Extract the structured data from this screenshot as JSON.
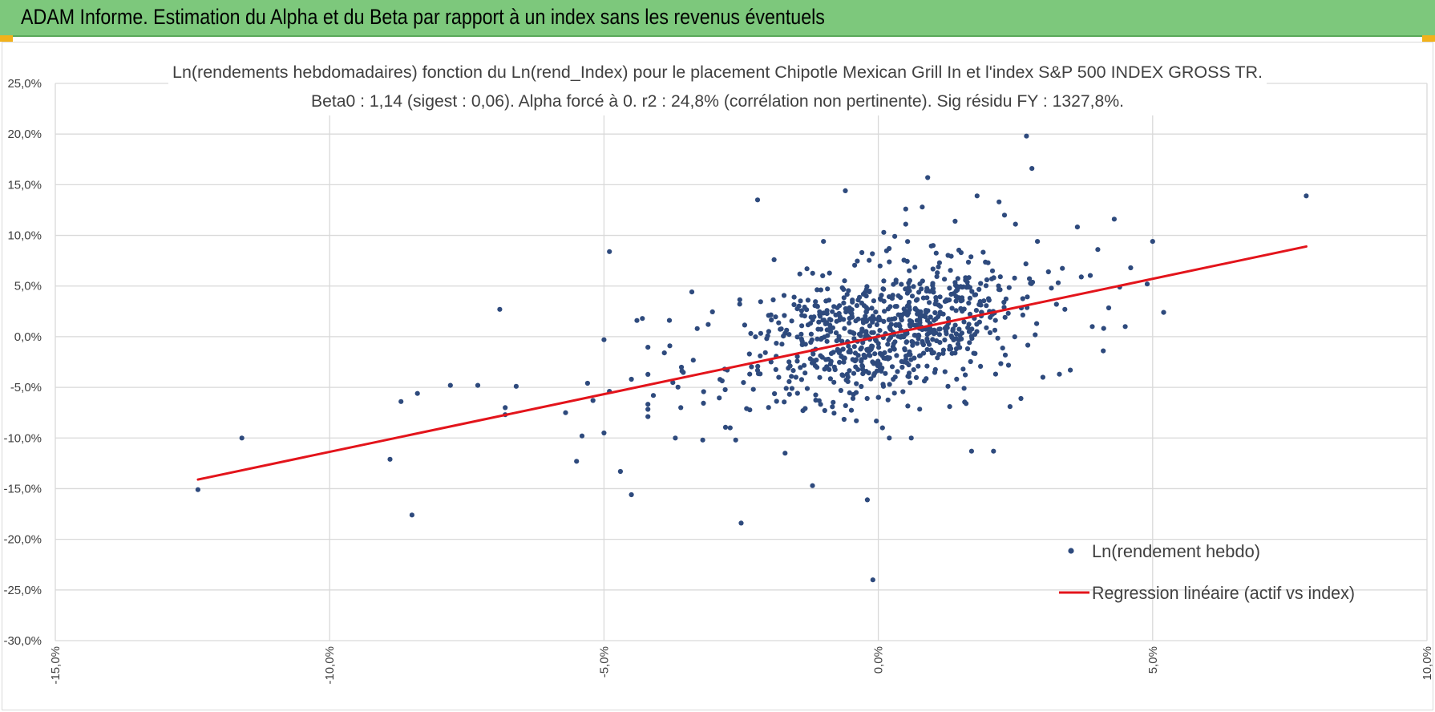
{
  "header": {
    "title": "ADAM Informe. Estimation du Alpha et du Beta par rapport à un index sans les revenus éventuels"
  },
  "colors": {
    "header_bg": "#7dc87c",
    "accent_corner": "#f2b21a",
    "points": "#2e4a7d",
    "regression": "#e3141b",
    "grid": "#d9d9d9",
    "text": "#404040"
  },
  "chart_data": {
    "type": "scatter",
    "title_lines": [
      "Ln(rendements hebdomadaires) fonction du Ln(rend_Index) pour le placement Chipotle Mexican Grill In et l'index S&P 500 INDEX GROSS TR.",
      "Beta0 : 1,14 (sigest : 0,06).  Alpha forcé à 0. r2 : 24,8% (corrélation non pertinente). Sig résidu FY : 1327,8%."
    ],
    "xlim": [
      -15,
      10
    ],
    "ylim": [
      -30,
      25
    ],
    "x_ticks": [
      "-15,0%",
      "-10,0%",
      "-5,0%",
      "0,0%",
      "5,0%",
      "10,0%"
    ],
    "y_ticks": [
      "25,0%",
      "20,0%",
      "15,0%",
      "10,0%",
      "5,0%",
      "0,0%",
      "-5,0%",
      "-10,0%",
      "-15,0%",
      "-20,0%",
      "-25,0%",
      "-30,0%"
    ],
    "grid": true,
    "legend_position": "bottom-right",
    "series": [
      {
        "name": "Ln(rendement hebdo)",
        "kind": "scatter",
        "approximate_count": 900,
        "points": [
          [
            -12.4,
            -15.1
          ],
          [
            -11.6,
            -10.0
          ],
          [
            -8.9,
            -12.1
          ],
          [
            -8.7,
            -6.4
          ],
          [
            -8.5,
            -17.6
          ],
          [
            -8.4,
            -5.6
          ],
          [
            -7.8,
            -4.8
          ],
          [
            -7.3,
            -4.8
          ],
          [
            -6.9,
            2.7
          ],
          [
            -6.8,
            -7.0
          ],
          [
            -6.8,
            -7.7
          ],
          [
            -6.6,
            -4.9
          ],
          [
            -5.7,
            -7.5
          ],
          [
            -5.5,
            -12.3
          ],
          [
            -5.4,
            -9.8
          ],
          [
            -5.3,
            -4.6
          ],
          [
            -5.2,
            -6.3
          ],
          [
            -5.0,
            -0.3
          ],
          [
            -5.0,
            -9.5
          ],
          [
            -4.9,
            8.4
          ],
          [
            -4.9,
            -5.4
          ],
          [
            -4.7,
            -13.3
          ],
          [
            -4.5,
            -4.2
          ],
          [
            -4.5,
            -15.6
          ],
          [
            -4.4,
            1.6
          ],
          [
            -4.3,
            1.8
          ],
          [
            -4.1,
            -5.8
          ],
          [
            -3.9,
            -1.6
          ],
          [
            -3.8,
            -0.9
          ],
          [
            -3.7,
            -10.0
          ],
          [
            -3.6,
            -7.0
          ],
          [
            -3.3,
            0.8
          ],
          [
            -3.2,
            -10.2
          ],
          [
            -3.1,
            1.2
          ],
          [
            -2.8,
            -3.2
          ],
          [
            -2.7,
            -9.0
          ],
          [
            -2.6,
            -10.2
          ],
          [
            -2.5,
            -18.4
          ],
          [
            -2.4,
            -7.1
          ],
          [
            -2.2,
            13.5
          ],
          [
            -2.0,
            2.1
          ],
          [
            -1.9,
            7.6
          ],
          [
            -1.7,
            -11.5
          ],
          [
            -1.5,
            -4.0
          ],
          [
            -1.3,
            6.7
          ],
          [
            -1.2,
            -14.7
          ],
          [
            -1.0,
            9.4
          ],
          [
            -0.9,
            3.6
          ],
          [
            -0.8,
            -3.0
          ],
          [
            -0.6,
            14.4
          ],
          [
            -0.4,
            -8.3
          ],
          [
            -0.3,
            8.3
          ],
          [
            -0.2,
            -16.1
          ],
          [
            0.0,
            -6.0
          ],
          [
            -0.1,
            -24.0
          ],
          [
            0.1,
            10.3
          ],
          [
            0.1,
            5.5
          ],
          [
            0.2,
            -10.0
          ],
          [
            0.3,
            9.9
          ],
          [
            0.5,
            12.6
          ],
          [
            0.5,
            11.1
          ],
          [
            0.6,
            -10.0
          ],
          [
            0.8,
            12.8
          ],
          [
            0.9,
            15.7
          ],
          [
            1.0,
            9.0
          ],
          [
            1.3,
            -6.9
          ],
          [
            1.4,
            11.4
          ],
          [
            1.6,
            -6.6
          ],
          [
            1.7,
            -11.3
          ],
          [
            1.8,
            13.9
          ],
          [
            2.0,
            7.3
          ],
          [
            2.1,
            -11.3
          ],
          [
            2.2,
            13.3
          ],
          [
            2.3,
            12.0
          ],
          [
            2.4,
            -6.9
          ],
          [
            2.5,
            11.1
          ],
          [
            2.6,
            -6.1
          ],
          [
            2.7,
            19.8
          ],
          [
            2.8,
            16.6
          ],
          [
            2.9,
            9.4
          ],
          [
            3.0,
            -4.0
          ],
          [
            3.1,
            6.4
          ],
          [
            3.3,
            -3.7
          ],
          [
            3.4,
            2.7
          ],
          [
            3.5,
            -3.3
          ],
          [
            3.7,
            5.9
          ],
          [
            3.9,
            1.0
          ],
          [
            4.0,
            8.6
          ],
          [
            4.1,
            -1.4
          ],
          [
            4.3,
            11.6
          ],
          [
            4.4,
            4.9
          ],
          [
            4.5,
            1.0
          ],
          [
            4.6,
            6.8
          ],
          [
            4.9,
            5.2
          ],
          [
            5.0,
            9.4
          ],
          [
            5.2,
            2.4
          ],
          [
            7.8,
            13.9
          ]
        ]
      },
      {
        "name": "Regression linéaire (actif vs index)",
        "kind": "line",
        "points": [
          [
            -12.4,
            -14.1
          ],
          [
            7.8,
            8.9
          ]
        ]
      }
    ]
  }
}
